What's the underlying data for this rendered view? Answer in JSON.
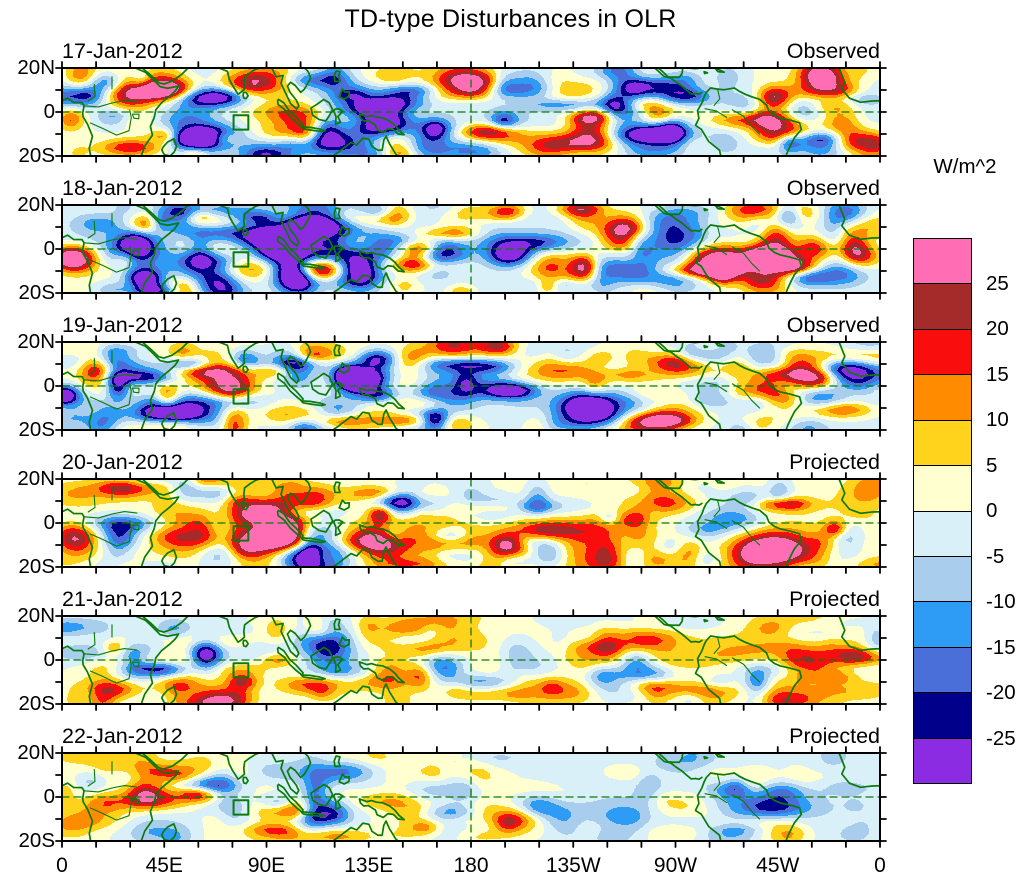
{
  "chart_data": {
    "type": "heatmap",
    "title": "TD-type Disturbances in OLR",
    "unit": "W/m^2",
    "contour_interval": 5,
    "contour_levels": [
      -25,
      -20,
      -15,
      -10,
      -5,
      0,
      5,
      10,
      15,
      20,
      25
    ],
    "palette_low_to_high": [
      "#8B2BE2",
      "#00008B",
      "#4A6FD9",
      "#2E9BF5",
      "#A9CDED",
      "#D9F0F8",
      "#FFFFD0",
      "#FFD21C",
      "#FF8C00",
      "#F90D0D",
      "#A52A2A",
      "#FF6EB4"
    ],
    "colorbar_tick_labels_top_to_bottom": [
      "25",
      "20",
      "15",
      "10",
      "5",
      "0",
      "-5",
      "-10",
      "-15",
      "-20",
      "-25"
    ],
    "x_axis": {
      "tick_labels": [
        "0",
        "45E",
        "90E",
        "135E",
        "180",
        "135W",
        "90W",
        "45W",
        "0"
      ],
      "labeled_tick_interval_deg": 45,
      "minor_tick_interval_deg": 15,
      "range_deg_lon": [
        0,
        360
      ]
    },
    "y_axis": {
      "tick_labels": [
        "20N",
        "0",
        "20S"
      ],
      "labeled_tick_lats": [
        20,
        0,
        -20
      ],
      "minor_tick_interval_deg": 10,
      "range_deg_lat": [
        20,
        -20
      ]
    },
    "panels": [
      {
        "date": "17-Jan-2012",
        "source": "Observed",
        "relative_intensity": 1.0
      },
      {
        "date": "18-Jan-2012",
        "source": "Observed",
        "relative_intensity": 1.0
      },
      {
        "date": "19-Jan-2012",
        "source": "Observed",
        "relative_intensity": 0.95
      },
      {
        "date": "20-Jan-2012",
        "source": "Projected",
        "relative_intensity": 0.8
      },
      {
        "date": "21-Jan-2012",
        "source": "Projected",
        "relative_intensity": 0.62
      },
      {
        "date": "22-Jan-2012",
        "source": "Projected",
        "relative_intensity": 0.45
      }
    ],
    "map_overlays": {
      "coastline_color": "#0A7A0A",
      "equator_line": "dashed",
      "dateline_180_line": "dashed",
      "highlight_box": {
        "lon_range": [
          75.5,
          82
        ],
        "lat_range": [
          -8,
          -1.5
        ]
      }
    }
  }
}
